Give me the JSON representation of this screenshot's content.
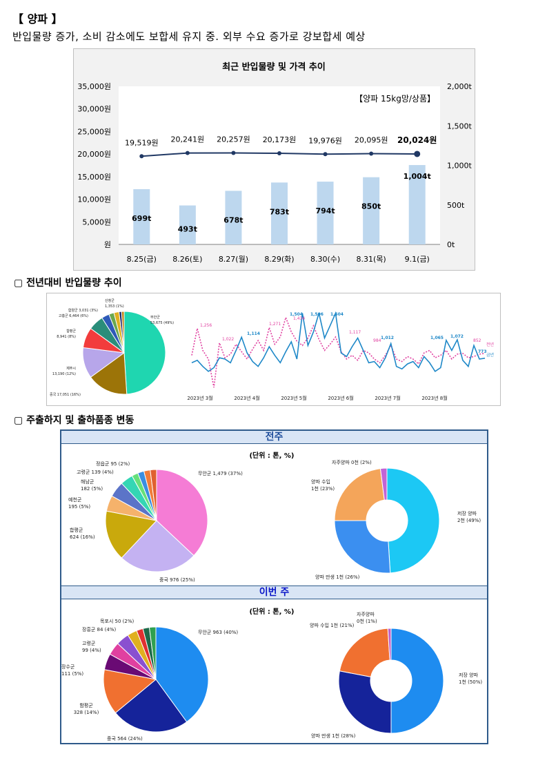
{
  "title": "【 양파 】",
  "subtitle": "반입물량 증가, 소비 감소에도 보합세 유지 중. 외부 수요 증가로 강보합세 예상",
  "chart_data": [
    {
      "type": "bar",
      "title": "최근 반입물량 및 가격 추이",
      "annotation": "【양파 15kg망/상품】",
      "categories": [
        "8.25(금)",
        "8.26(토)",
        "8.27(월)",
        "8.29(화)",
        "8.30(수)",
        "8.31(목)",
        "9.1(금)"
      ],
      "y_ticks_left": [
        "35,000원",
        "30,000원",
        "25,000원",
        "20,000원",
        "15,000원",
        "10,000원",
        "5,000원",
        "원"
      ],
      "y_ticks_right": [
        "2,000t",
        "1,500t",
        "1,000t",
        "500t",
        "0t"
      ],
      "ylim_left": [
        0,
        35000
      ],
      "ylim_right": [
        0,
        2000
      ],
      "series": [
        {
          "type": "bar",
          "axis": "right",
          "values": [
            699,
            493,
            678,
            783,
            794,
            850,
            1004
          ],
          "labels": [
            "699t",
            "493t",
            "678t",
            "783t",
            "794t",
            "850t",
            "1,004t"
          ],
          "color": "#bdd7ee"
        },
        {
          "type": "line",
          "axis": "left",
          "values": [
            19519,
            20241,
            20257,
            20173,
            19976,
            20095,
            20024
          ],
          "labels": [
            "19,519원",
            "20,241원",
            "20,257원",
            "20,173원",
            "19,976원",
            "20,095원",
            "20,024원"
          ],
          "color": "#203864"
        }
      ]
    },
    {
      "type": "pie",
      "slices": [
        {
          "label": "무안군",
          "value_label": "53,675 (49%)",
          "pct": 49,
          "color": "#1fd6b0"
        },
        {
          "label": "중국",
          "value_label": "17,051 (16%)",
          "pct": 16,
          "color": "#9c7408"
        },
        {
          "label": "제주시",
          "value_label": "13,190 (12%)",
          "pct": 12,
          "color": "#b7a6ea"
        },
        {
          "label": "함평군",
          "value_label": "8,941 (8%)",
          "pct": 8,
          "color": "#f23c3c"
        },
        {
          "label": "고흥군",
          "value_label": "6,464 (6%)",
          "pct": 6,
          "color": "#2a8d7a"
        },
        {
          "label": "함양군",
          "value_label": "3,031 (3%)",
          "pct": 3,
          "color": "#2e5ab8"
        },
        {
          "label": "",
          "value_label": "",
          "pct": 2,
          "color": "#6aa84f"
        },
        {
          "label": "",
          "value_label": "",
          "pct": 2,
          "color": "#e0b020"
        },
        {
          "label": "",
          "value_label": "",
          "pct": 1,
          "color": "#1c2a6a"
        },
        {
          "label": "산청군",
          "value_label": "1,353 (1%)",
          "pct": 1,
          "color": "#c08010"
        }
      ]
    },
    {
      "type": "line",
      "x_labels": [
        "2023년 3월",
        "2023년 4월",
        "2023년 5월",
        "2023년 6월",
        "2023년 7월",
        "2023년 8월"
      ],
      "legend": [
        "전년",
        "금년"
      ],
      "series": [
        {
          "name": "금년",
          "color": "#1e88c8",
          "annotations": [
            "1,114",
            "1,504",
            "1,506",
            "1,504",
            "1,012",
            "1,065",
            "1,072",
            "773"
          ],
          "values": [
            700,
            740,
            640,
            560,
            620,
            780,
            760,
            700,
            900,
            1114,
            860,
            720,
            640,
            780,
            960,
            820,
            700,
            880,
            1040,
            760,
            1504,
            980,
            1200,
            1506,
            1100,
            1300,
            1504,
            860,
            800,
            960,
            1100,
            900,
            700,
            720,
            620,
            780,
            1012,
            640,
            600,
            680,
            720,
            620,
            800,
            700,
            560,
            620,
            1065,
            900,
            1072,
            740,
            640,
            980,
            760,
            773
          ]
        },
        {
          "name": "전년",
          "color": "#e040a0",
          "annotations": [
            "1,256",
            "1,022",
            "1,271",
            "1,434",
            "1,117",
            "984",
            "852"
          ],
          "values": [
            820,
            1256,
            900,
            760,
            300,
            1022,
            780,
            840,
            1000,
            880,
            760,
            920,
            1060,
            900,
            1271,
            1000,
            1120,
            1434,
            1200,
            1050,
            980,
            1100,
            1300,
            1080,
            900,
            1000,
            1117,
            880,
            760,
            820,
            740,
            900,
            860,
            760,
            700,
            820,
            984,
            760,
            720,
            800,
            760,
            680,
            860,
            900,
            780,
            820,
            900,
            760,
            840,
            852,
            780,
            800,
            840,
            852
          ]
        }
      ]
    },
    {
      "type": "pie",
      "section": "전주",
      "unit": "(단위 : 톤, %)",
      "slices": [
        {
          "label": "무안군 1,479 (37%)",
          "pct": 37,
          "color": "#f57cd5"
        },
        {
          "label": "중국 976 (25%)",
          "pct": 25,
          "color": "#c4b2f2"
        },
        {
          "label": "합평군 624 (16%)",
          "pct": 16,
          "color": "#c9a90c"
        },
        {
          "label": "예천군 195 (5%)",
          "pct": 5,
          "color": "#f5b26b"
        },
        {
          "label": "해남군 182 (5%)",
          "pct": 5,
          "color": "#5b74c8"
        },
        {
          "label": "고령군 139 (4%)",
          "pct": 4,
          "color": "#34d6b4"
        },
        {
          "label": "",
          "pct": 2,
          "color": "#66e07a"
        },
        {
          "label": "정읍군 95 (2%)",
          "pct": 2,
          "color": "#3a8ee0"
        },
        {
          "label": "",
          "pct": 2,
          "color": "#f07c3a"
        },
        {
          "label": "",
          "pct": 2,
          "color": "#e06030"
        }
      ]
    },
    {
      "type": "pie",
      "section": "전주",
      "slices": [
        {
          "label": "저장 양파 2천 (49%)",
          "pct": 49,
          "color": "#1cc8f4"
        },
        {
          "label": "양파 만생 1천 (26%)",
          "pct": 26,
          "color": "#3b8ff0"
        },
        {
          "label": "양파 수입 1천 (23%)",
          "pct": 23,
          "color": "#f4a55a"
        },
        {
          "label": "자주양파 0천 (2%)",
          "pct": 2,
          "color": "#c264d6"
        }
      ]
    },
    {
      "type": "pie",
      "section": "이번 주",
      "unit": "(단위 : 톤, %)",
      "slices": [
        {
          "label": "무안군 963 (40%)",
          "pct": 40,
          "color": "#1e8cf0"
        },
        {
          "label": "중국 564 (24%)",
          "pct": 24,
          "color": "#15239a"
        },
        {
          "label": "함평군 328 (14%)",
          "pct": 14,
          "color": "#f07030"
        },
        {
          "label": "장수군 111 (5%)",
          "pct": 5,
          "color": "#6a0a74"
        },
        {
          "label": "고령군 99 (4%)",
          "pct": 4,
          "color": "#e040a0"
        },
        {
          "label": "장흥군 84 (4%)",
          "pct": 4,
          "color": "#8a50d0"
        },
        {
          "label": "",
          "pct": 3,
          "color": "#e0b020"
        },
        {
          "label": "목포시 50 (2%)",
          "pct": 2,
          "color": "#e03030"
        },
        {
          "label": "",
          "pct": 2,
          "color": "#1d6a4a"
        },
        {
          "label": "",
          "pct": 2,
          "color": "#30a050"
        }
      ]
    },
    {
      "type": "pie",
      "section": "이번 주",
      "slices": [
        {
          "label": "저장 양파 1천 (50%)",
          "pct": 50,
          "color": "#1e8cf0"
        },
        {
          "label": "양파 만생 1천 (28%)",
          "pct": 28,
          "color": "#15239a"
        },
        {
          "label": "양파 수입 1천 (21%)",
          "pct": 21,
          "color": "#f07030"
        },
        {
          "label": "자주양파 0천 (1%)",
          "pct": 1,
          "color": "#c060c8"
        }
      ]
    }
  ],
  "sections": {
    "yoy": "▢ 전년대비 반입물량 추이",
    "shipping": "▢ 주출하지 및 출하품종 변동"
  },
  "bands": {
    "prev_week": "전주",
    "this_week": "이번 주"
  }
}
